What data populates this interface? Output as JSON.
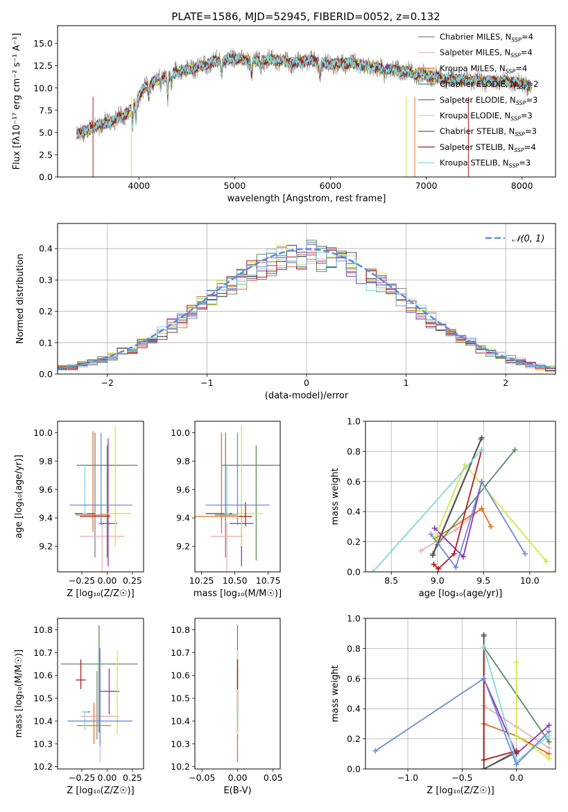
{
  "chart_data": [
    {
      "id": "spectrum",
      "type": "line",
      "title": "PLATE=1586, MJD=52945, FIBERID=0052, z=0.132",
      "xlabel": "wavelength [Angstrom, rest frame]",
      "ylabel": "Flux [fλ10⁻¹⁷ erg cm⁻² s⁻¹ A⁻¹]",
      "xlim": [
        3150,
        8350
      ],
      "ylim": [
        0,
        17
      ],
      "xticks": [
        4000,
        5000,
        6000,
        7000,
        8000
      ],
      "yticks": [
        0.0,
        2.5,
        5.0,
        7.5,
        10.0,
        12.5,
        15.0
      ],
      "legend_position": "right",
      "legend": [
        {
          "label": "Chabrier MILES, N",
          "sub": "SSP",
          "tail": "=4",
          "color": "#808080"
        },
        {
          "label": "Salpeter MILES, N",
          "sub": "SSP",
          "tail": "=4",
          "color": "#e8b2b2"
        },
        {
          "label": "Kroupa MILES, N",
          "sub": "SSP",
          "tail": "=4",
          "color": "#e07020"
        },
        {
          "label": "Chabrier ELODIE, N",
          "sub": "SSP",
          "tail": "=2",
          "color": "#5a8a5a"
        },
        {
          "label": "Salpeter ELODIE, N",
          "sub": "SSP",
          "tail": "=3",
          "color": "#9030b0"
        },
        {
          "label": "Kroupa ELODIE, N",
          "sub": "SSP",
          "tail": "=3",
          "color": "#d0e840"
        },
        {
          "label": "Chabrier STELIB, N",
          "sub": "SSP",
          "tail": "=3",
          "color": "#505050"
        },
        {
          "label": "Salpeter STELIB, N",
          "sub": "SSP",
          "tail": "=4",
          "color": "#b01818"
        },
        {
          "label": "Kroupa STELIB, N",
          "sub": "SSP",
          "tail": "=3",
          "color": "#80d8e0"
        }
      ],
      "continuum_knots": [
        [
          3350,
          4.8
        ],
        [
          3500,
          5.5
        ],
        [
          3700,
          6.2
        ],
        [
          3850,
          7.0
        ],
        [
          3950,
          8.0
        ],
        [
          4050,
          10.0
        ],
        [
          4200,
          11.0
        ],
        [
          4400,
          11.8
        ],
        [
          4600,
          12.3
        ],
        [
          4800,
          13.0
        ],
        [
          5000,
          13.3
        ],
        [
          5200,
          13.0
        ],
        [
          5400,
          13.2
        ],
        [
          5600,
          12.8
        ],
        [
          5800,
          13.1
        ],
        [
          6000,
          12.6
        ],
        [
          6200,
          12.8
        ],
        [
          6400,
          12.4
        ],
        [
          6600,
          12.1
        ],
        [
          6800,
          11.8
        ],
        [
          7000,
          11.4
        ],
        [
          7200,
          11.0
        ],
        [
          7400,
          10.9
        ],
        [
          7600,
          10.8
        ],
        [
          7800,
          10.8
        ],
        [
          8000,
          10.5
        ],
        [
          8100,
          10.2
        ]
      ]
    },
    {
      "id": "residuals",
      "type": "histogram",
      "xlabel": "(data-model)/error",
      "ylabel": "Normed distribution",
      "xlim": [
        -2.5,
        2.5
      ],
      "ylim": [
        0,
        0.48
      ],
      "xticks": [
        -2,
        -1,
        0,
        1,
        2
      ],
      "yticks": [
        0.0,
        0.1,
        0.2,
        0.3,
        0.4
      ],
      "grid": true,
      "legend_position": "top-right",
      "reference_label": "𝒩(0, 1)",
      "reference_color": "#5a8fd8",
      "bin_width": 0.1,
      "series_colors": [
        "#808080",
        "#e8b2b2",
        "#e07020",
        "#5a8a5a",
        "#9030b0",
        "#d0e840",
        "#505050",
        "#b01818",
        "#80d8e0",
        "#6a8ad8"
      ]
    },
    {
      "id": "age_vs_Z",
      "type": "errorbar",
      "xlabel": "Z [log₁₀(Z/Z☉)]",
      "ylabel": "age  [log₁₀(age/yr)]",
      "xlim": [
        -0.49,
        0.36
      ],
      "ylim": [
        9.02,
        10.08
      ],
      "xticks": [
        -0.25,
        0.0,
        0.25
      ],
      "xticklabels": [
        "−0.25",
        "0.00",
        "0.25"
      ],
      "yticks": [
        9.2,
        9.4,
        9.6,
        9.8,
        10.0
      ],
      "points": [
        {
          "x": -0.12,
          "y": 9.42,
          "xerr": 0.12,
          "yerr_lo": 0.3,
          "yerr_hi": 0.58,
          "color": "#808080"
        },
        {
          "x": -0.05,
          "y": 9.27,
          "xerr": 0.22,
          "yerr_lo": 0.25,
          "yerr_hi": 0.1,
          "color": "#e8b2b2"
        },
        {
          "x": -0.14,
          "y": 9.42,
          "xerr": 0.17,
          "yerr_lo": 0.12,
          "yerr_hi": 0.59,
          "color": "#e07020"
        },
        {
          "x": 0.0,
          "y": 9.77,
          "xerr": 0.3,
          "yerr_lo": 0.65,
          "yerr_hi": 0.14,
          "color": "#5a8a5a"
        },
        {
          "x": 0.01,
          "y": 9.36,
          "xerr": 0.09,
          "yerr_lo": 0.3,
          "yerr_hi": 0.6,
          "color": "#9030b0"
        },
        {
          "x": 0.08,
          "y": 9.43,
          "xerr": 0.16,
          "yerr_lo": 0.23,
          "yerr_hi": 0.62,
          "color": "#d0e840"
        },
        {
          "x": -0.22,
          "y": 9.43,
          "xerr": 0.1,
          "yerr_lo": 0.0,
          "yerr_hi": 0.0,
          "color": "#505050"
        },
        {
          "x": -0.12,
          "y": 9.41,
          "xerr": 0.15,
          "yerr_lo": 0.0,
          "yerr_hi": 0.0,
          "color": "#b01818"
        },
        {
          "x": -0.22,
          "y": 9.43,
          "xerr": 0.02,
          "yerr_lo": 0.0,
          "yerr_hi": 0.33,
          "color": "#80d8e0"
        },
        {
          "x": -0.06,
          "y": 9.49,
          "xerr": 0.31,
          "yerr_lo": 0.14,
          "yerr_hi": 0.51,
          "color": "#6a8ad8"
        }
      ]
    },
    {
      "id": "age_vs_mass",
      "type": "errorbar",
      "xlabel": "mass [log₁₀(M/M☉)]",
      "ylabel": "",
      "xlim": [
        10.2,
        10.84
      ],
      "ylim": [
        9.02,
        10.08
      ],
      "xticks": [
        10.25,
        10.5,
        10.75
      ],
      "xticklabels": [
        "10.25",
        "10.50",
        "10.75"
      ],
      "yticks": [
        9.2,
        9.4,
        9.6,
        9.8,
        10.0
      ],
      "points": [
        {
          "x": 10.43,
          "y": 9.42,
          "xerr": 0.08,
          "yerr_lo": 0.3,
          "yerr_hi": 0.58,
          "color": "#808080"
        },
        {
          "x": 10.44,
          "y": 9.27,
          "xerr": 0.12,
          "yerr_lo": 0.25,
          "yerr_hi": 0.1,
          "color": "#e8b2b2"
        },
        {
          "x": 10.4,
          "y": 9.41,
          "xerr": 0.23,
          "yerr_lo": 0.12,
          "yerr_hi": 0.59,
          "color": "#e07020"
        },
        {
          "x": 10.66,
          "y": 9.77,
          "xerr": 0.26,
          "yerr_lo": 0.67,
          "yerr_hi": 0.14,
          "color": "#5a8a5a"
        },
        {
          "x": 10.55,
          "y": 9.36,
          "xerr": 0.09,
          "yerr_lo": 0.3,
          "yerr_hi": 0.13,
          "color": "#9030b0"
        },
        {
          "x": 10.55,
          "y": 9.43,
          "xerr": 0.16,
          "yerr_lo": 0.23,
          "yerr_hi": 0.62,
          "color": "#d0e840"
        },
        {
          "x": 10.38,
          "y": 9.43,
          "xerr": 0.1,
          "yerr_lo": 0.0,
          "yerr_hi": 0.0,
          "color": "#505050"
        },
        {
          "x": 10.58,
          "y": 9.41,
          "xerr": 0.05,
          "yerr_lo": 0.07,
          "yerr_hi": 0.1,
          "color": "#b01818"
        },
        {
          "x": 10.44,
          "y": 9.43,
          "xerr": 0.02,
          "yerr_lo": 0.0,
          "yerr_hi": 0.33,
          "color": "#80d8e0"
        },
        {
          "x": 10.52,
          "y": 9.49,
          "xerr": 0.24,
          "yerr_lo": 0.14,
          "yerr_hi": 0.51,
          "color": "#6a8ad8"
        }
      ]
    },
    {
      "id": "massweight_vs_age",
      "type": "line",
      "xlabel": "age  [log₁₀(age/yr)]",
      "ylabel": "mass weight",
      "xlim": [
        8.22,
        10.28
      ],
      "ylim": [
        0,
        1.0
      ],
      "xticks": [
        8.5,
        9.0,
        9.5,
        10.0
      ],
      "yticks": [
        0.0,
        0.2,
        0.4,
        0.6,
        0.8,
        1.0
      ],
      "grid": true,
      "series": [
        {
          "color": "#808080",
          "x": [
            8.95,
            9.47
          ],
          "y": [
            0.12,
            0.88
          ]
        },
        {
          "color": "#e8b2b2",
          "x": [
            8.82,
            9.2,
            9.48
          ],
          "y": [
            0.14,
            0.28,
            0.42
          ]
        },
        {
          "color": "#e07020",
          "x": [
            8.97,
            9.48,
            9.58
          ],
          "y": [
            0.22,
            0.42,
            0.3
          ]
        },
        {
          "color": "#5a8a5a",
          "x": [
            9.0,
            9.84
          ],
          "y": [
            0.18,
            0.81
          ]
        },
        {
          "color": "#9030b0",
          "x": [
            8.97,
            9.28,
            9.48
          ],
          "y": [
            0.29,
            0.1,
            0.6
          ]
        },
        {
          "color": "#d0e840",
          "x": [
            8.97,
            9.3,
            10.18
          ],
          "y": [
            0.22,
            0.71,
            0.07
          ]
        },
        {
          "color": "#505050",
          "x": [
            8.95,
            9.48
          ],
          "y": [
            0.11,
            0.89
          ]
        },
        {
          "color": "#b01818",
          "x": [
            8.96,
            9.01,
            9.18,
            9.48
          ],
          "y": [
            0.05,
            0.02,
            0.12,
            0.81
          ]
        },
        {
          "color": "#80d8e0",
          "x": [
            8.3,
            9.48
          ],
          "y": [
            0.0,
            0.81
          ]
        },
        {
          "color": "#6a8ad8",
          "x": [
            8.93,
            9.2,
            9.48,
            9.95
          ],
          "y": [
            0.25,
            0.03,
            0.6,
            0.12
          ]
        }
      ]
    },
    {
      "id": "mass_vs_Z",
      "type": "errorbar",
      "xlabel": "Z [log₁₀(Z/Z☉)]",
      "ylabel": "mass [log₁₀(M/M☉)]",
      "xlim": [
        -0.49,
        0.36
      ],
      "ylim": [
        10.19,
        10.85
      ],
      "xticks": [
        -0.25,
        0.0,
        0.25
      ],
      "xticklabels": [
        "−0.25",
        "0.00",
        "0.25"
      ],
      "yticks": [
        10.2,
        10.3,
        10.4,
        10.5,
        10.6,
        10.7,
        10.8
      ],
      "points": [
        {
          "x": -0.1,
          "y": 10.42,
          "xerr": 0.16,
          "yerr_lo": 0.1,
          "yerr_hi": 0.2,
          "color": "#808080"
        },
        {
          "x": -0.07,
          "y": 10.42,
          "xerr": 0.19,
          "yerr_lo": 0.2,
          "yerr_hi": 0.0,
          "color": "#e8b2b2"
        },
        {
          "x": -0.13,
          "y": 10.38,
          "xerr": 0.17,
          "yerr_lo": 0.08,
          "yerr_hi": 0.1,
          "color": "#e07020"
        },
        {
          "x": -0.08,
          "y": 10.65,
          "xerr": 0.38,
          "yerr_lo": 0.3,
          "yerr_hi": 0.17,
          "color": "#5a8a5a"
        },
        {
          "x": 0.02,
          "y": 10.53,
          "xerr": 0.1,
          "yerr_lo": 0.1,
          "yerr_hi": 0.1,
          "color": "#9030b0"
        },
        {
          "x": 0.1,
          "y": 10.4,
          "xerr": 0.02,
          "yerr_lo": 0.06,
          "yerr_hi": 0.31,
          "color": "#d0e840"
        },
        {
          "x": -0.21,
          "y": 10.44,
          "xerr": 0.04,
          "yerr_lo": 0.0,
          "yerr_hi": 0.0,
          "color": "#505050"
        },
        {
          "x": -0.26,
          "y": 10.58,
          "xerr": 0.05,
          "yerr_lo": 0.04,
          "yerr_hi": 0.09,
          "color": "#b01818"
        },
        {
          "x": -0.22,
          "y": 10.44,
          "xerr": 0.03,
          "yerr_lo": 0.08,
          "yerr_hi": 0.0,
          "color": "#80d8e0"
        },
        {
          "x": -0.07,
          "y": 10.4,
          "xerr": 0.32,
          "yerr_lo": 0.11,
          "yerr_hi": 0.32,
          "color": "#6a8ad8"
        }
      ]
    },
    {
      "id": "mass_vs_ebv",
      "type": "errorbar",
      "xlabel": "E(B-V)",
      "ylabel": "",
      "xlim": [
        -0.06,
        0.06
      ],
      "ylim": [
        10.19,
        10.85
      ],
      "xticks": [
        -0.05,
        0.0,
        0.05
      ],
      "xticklabels": [
        "−0.05",
        "0.00",
        "0.05"
      ],
      "yticks": [
        10.2,
        10.3,
        10.4,
        10.5,
        10.6,
        10.7,
        10.8
      ],
      "points": [
        {
          "x": 0.0,
          "y": 10.42,
          "xerr": 0,
          "yerr_lo": 0.1,
          "yerr_hi": 0.2,
          "color": "#808080"
        },
        {
          "x": 0.0,
          "y": 10.4,
          "xerr": 0,
          "yerr_lo": 0.18,
          "yerr_hi": 0.15,
          "color": "#e07020"
        },
        {
          "x": 0.0,
          "y": 10.65,
          "xerr": 0,
          "yerr_lo": 0.3,
          "yerr_hi": 0.17,
          "color": "#5a8a5a"
        },
        {
          "x": 0.0,
          "y": 10.53,
          "xerr": 0,
          "yerr_lo": 0.1,
          "yerr_hi": 0.1,
          "color": "#9030b0"
        },
        {
          "x": 0.0,
          "y": 10.4,
          "xerr": 0,
          "yerr_lo": 0.06,
          "yerr_hi": 0.31,
          "color": "#d0e840"
        },
        {
          "x": 0.0,
          "y": 10.58,
          "xerr": 0,
          "yerr_lo": 0.04,
          "yerr_hi": 0.09,
          "color": "#b01818"
        },
        {
          "x": 0.0,
          "y": 10.44,
          "xerr": 0,
          "yerr_lo": 0.08,
          "yerr_hi": 0.0,
          "color": "#80d8e0"
        }
      ]
    },
    {
      "id": "massweight_vs_Z",
      "type": "line",
      "xlabel": "Z [log₁₀(Z/Z☉)]",
      "ylabel": "mass weight",
      "xlim": [
        -1.39,
        0.36
      ],
      "ylim": [
        0,
        1.0
      ],
      "xticks": [
        -1.0,
        -0.5,
        0.0
      ],
      "xticklabels": [
        "−1.0",
        "−0.5",
        "0.0"
      ],
      "yticks": [
        0.0,
        0.2,
        0.4,
        0.6,
        0.8,
        1.0
      ],
      "grid": true,
      "series": [
        {
          "color": "#808080",
          "x": [
            -0.3,
            -0.3,
            0.0
          ],
          "y": [
            0.88,
            0.0,
            0.12
          ]
        },
        {
          "color": "#e8b2b2",
          "x": [
            -0.3,
            0.0,
            0.3
          ],
          "y": [
            0.42,
            0.28,
            0.14
          ]
        },
        {
          "color": "#e07020",
          "x": [
            -0.3,
            0.0,
            0.3
          ],
          "y": [
            0.3,
            0.22,
            0.1
          ]
        },
        {
          "color": "#5a8a5a",
          "x": [
            -0.3,
            0.3
          ],
          "y": [
            0.81,
            0.18
          ]
        },
        {
          "color": "#9030b0",
          "x": [
            -0.3,
            0.0,
            0.3
          ],
          "y": [
            0.6,
            0.1,
            0.29
          ]
        },
        {
          "color": "#d0e840",
          "x": [
            0.0,
            0.0,
            0.3
          ],
          "y": [
            0.71,
            0.22,
            0.07
          ]
        },
        {
          "color": "#505050",
          "x": [
            -0.3,
            -0.3,
            0.0
          ],
          "y": [
            0.89,
            0.0,
            0.11
          ]
        },
        {
          "color": "#b01818",
          "x": [
            -0.3,
            -0.3,
            0.0
          ],
          "y": [
            0.81,
            0.06,
            0.12
          ]
        },
        {
          "color": "#80d8e0",
          "x": [
            -0.3,
            0.0,
            0.3
          ],
          "y": [
            0.81,
            0.05,
            0.22
          ]
        },
        {
          "color": "#6a8ad8",
          "x": [
            -1.3,
            -0.3,
            0.0,
            0.3
          ],
          "y": [
            0.12,
            0.6,
            0.03,
            0.25
          ]
        }
      ]
    }
  ]
}
